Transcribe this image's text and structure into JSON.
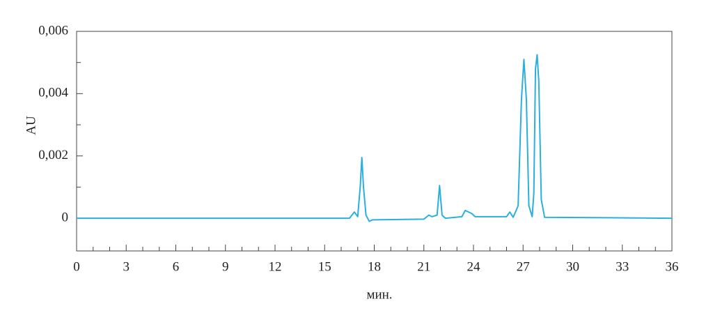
{
  "chart_data": {
    "type": "line",
    "x_label": "мин.",
    "y_label": "AU",
    "xlim": [
      0,
      36
    ],
    "xticks": [
      0,
      3,
      6,
      9,
      12,
      15,
      18,
      21,
      24,
      27,
      30,
      33,
      36
    ],
    "xminorticks": [
      1,
      2,
      4,
      5,
      7,
      8,
      10,
      11,
      13,
      14,
      16,
      17,
      19,
      20,
      22,
      23,
      25,
      26,
      28,
      29,
      31,
      32,
      34,
      35
    ],
    "ylim": [
      -0.00105,
      0.006
    ],
    "yticks": [
      {
        "value": 0,
        "label": "0"
      },
      {
        "value": 0.002,
        "label": "0,002"
      },
      {
        "value": 0.004,
        "label": "0,004"
      },
      {
        "value": 0.006,
        "label": "0,006"
      }
    ],
    "yminorticks": [
      0.001,
      0.003,
      0.005
    ],
    "series": [
      {
        "color": "#2aafe0",
        "x": [
          0,
          16.5,
          16.8,
          17.0,
          17.15,
          17.25,
          17.35,
          17.5,
          17.7,
          17.9,
          18,
          21,
          21.3,
          21.5,
          21.8,
          21.95,
          22.1,
          22.3,
          23.3,
          23.5,
          23.7,
          23.9,
          24.1,
          26.0,
          26.2,
          26.4,
          26.7,
          26.9,
          27.05,
          27.2,
          27.35,
          27.55,
          27.65,
          27.75,
          27.85,
          27.95,
          28.1,
          28.3,
          36
        ],
        "values": [
          0,
          0,
          0.0002,
          5e-05,
          0.001,
          0.00195,
          0.001,
          0.0001,
          -0.0001,
          -5e-05,
          -5e-05,
          -3e-05,
          0.0001,
          5e-05,
          0.0001,
          0.00105,
          0.0001,
          0,
          5e-05,
          0.00025,
          0.0002,
          0.00015,
          5e-05,
          5e-05,
          0.0002,
          3e-05,
          0.0004,
          0.0038,
          0.0051,
          0.0038,
          0.0004,
          5e-05,
          0.0008,
          0.0048,
          0.00525,
          0.0044,
          0.0006,
          3e-05,
          0
        ]
      }
    ]
  }
}
